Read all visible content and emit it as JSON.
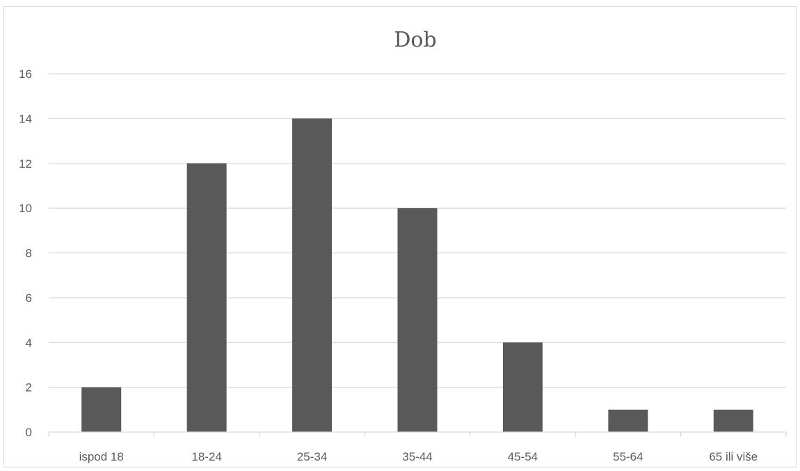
{
  "chart_data": {
    "type": "bar",
    "title": "Dob",
    "xlabel": "",
    "ylabel": "",
    "categories": [
      "ispod 18",
      "18-24",
      "25-34",
      "35-44",
      "45-54",
      "55-64",
      "65 ili više"
    ],
    "values": [
      2,
      12,
      14,
      10,
      4,
      1,
      1
    ],
    "ylim": [
      0,
      16
    ],
    "yticks": [
      0,
      2,
      4,
      6,
      8,
      10,
      12,
      14,
      16
    ],
    "grid": true,
    "legend": "none",
    "bar_color": "#595959",
    "grid_color": "#d9d9d9",
    "text_color": "#595959"
  }
}
